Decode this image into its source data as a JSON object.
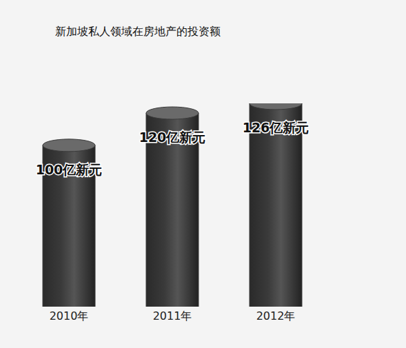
{
  "chart_data": {
    "type": "bar",
    "title": "新加坡私人领域在房地产的投资额",
    "categories": [
      "2010年",
      "2011年",
      "2012年"
    ],
    "values": [
      100,
      120,
      126
    ],
    "value_labels": [
      "100亿新元",
      "120亿新元",
      "126亿新元"
    ],
    "color": "#3a3a3a",
    "data_labels": true,
    "tick_labels": "x"
  }
}
